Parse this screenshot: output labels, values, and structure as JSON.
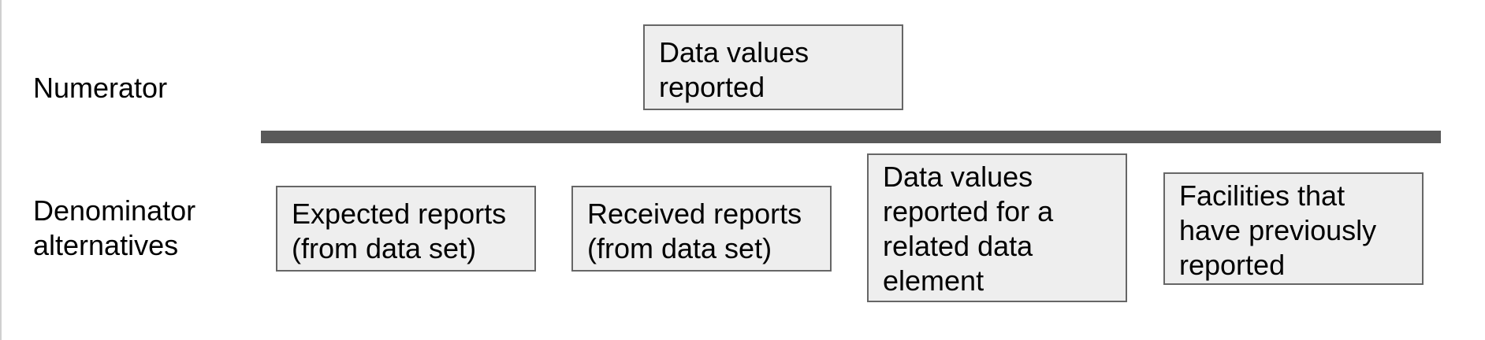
{
  "rows": {
    "numerator_label": [
      "Numerator"
    ],
    "denominator_label": [
      "Denominator",
      "alternatives"
    ]
  },
  "numerator_box": {
    "lines": [
      "Data values",
      "reported"
    ]
  },
  "denominator_boxes": [
    {
      "lines": [
        "Expected reports",
        "(from data set)"
      ]
    },
    {
      "lines": [
        "Received reports",
        "(from data set)"
      ]
    },
    {
      "lines": [
        "Data values",
        "reported for a",
        "related data",
        "element"
      ]
    },
    {
      "lines": [
        "Facilities that",
        "have previously",
        "reported"
      ]
    }
  ],
  "colors": {
    "box_fill": "#eeeeee",
    "box_border": "#666666",
    "divider": "#595959"
  }
}
